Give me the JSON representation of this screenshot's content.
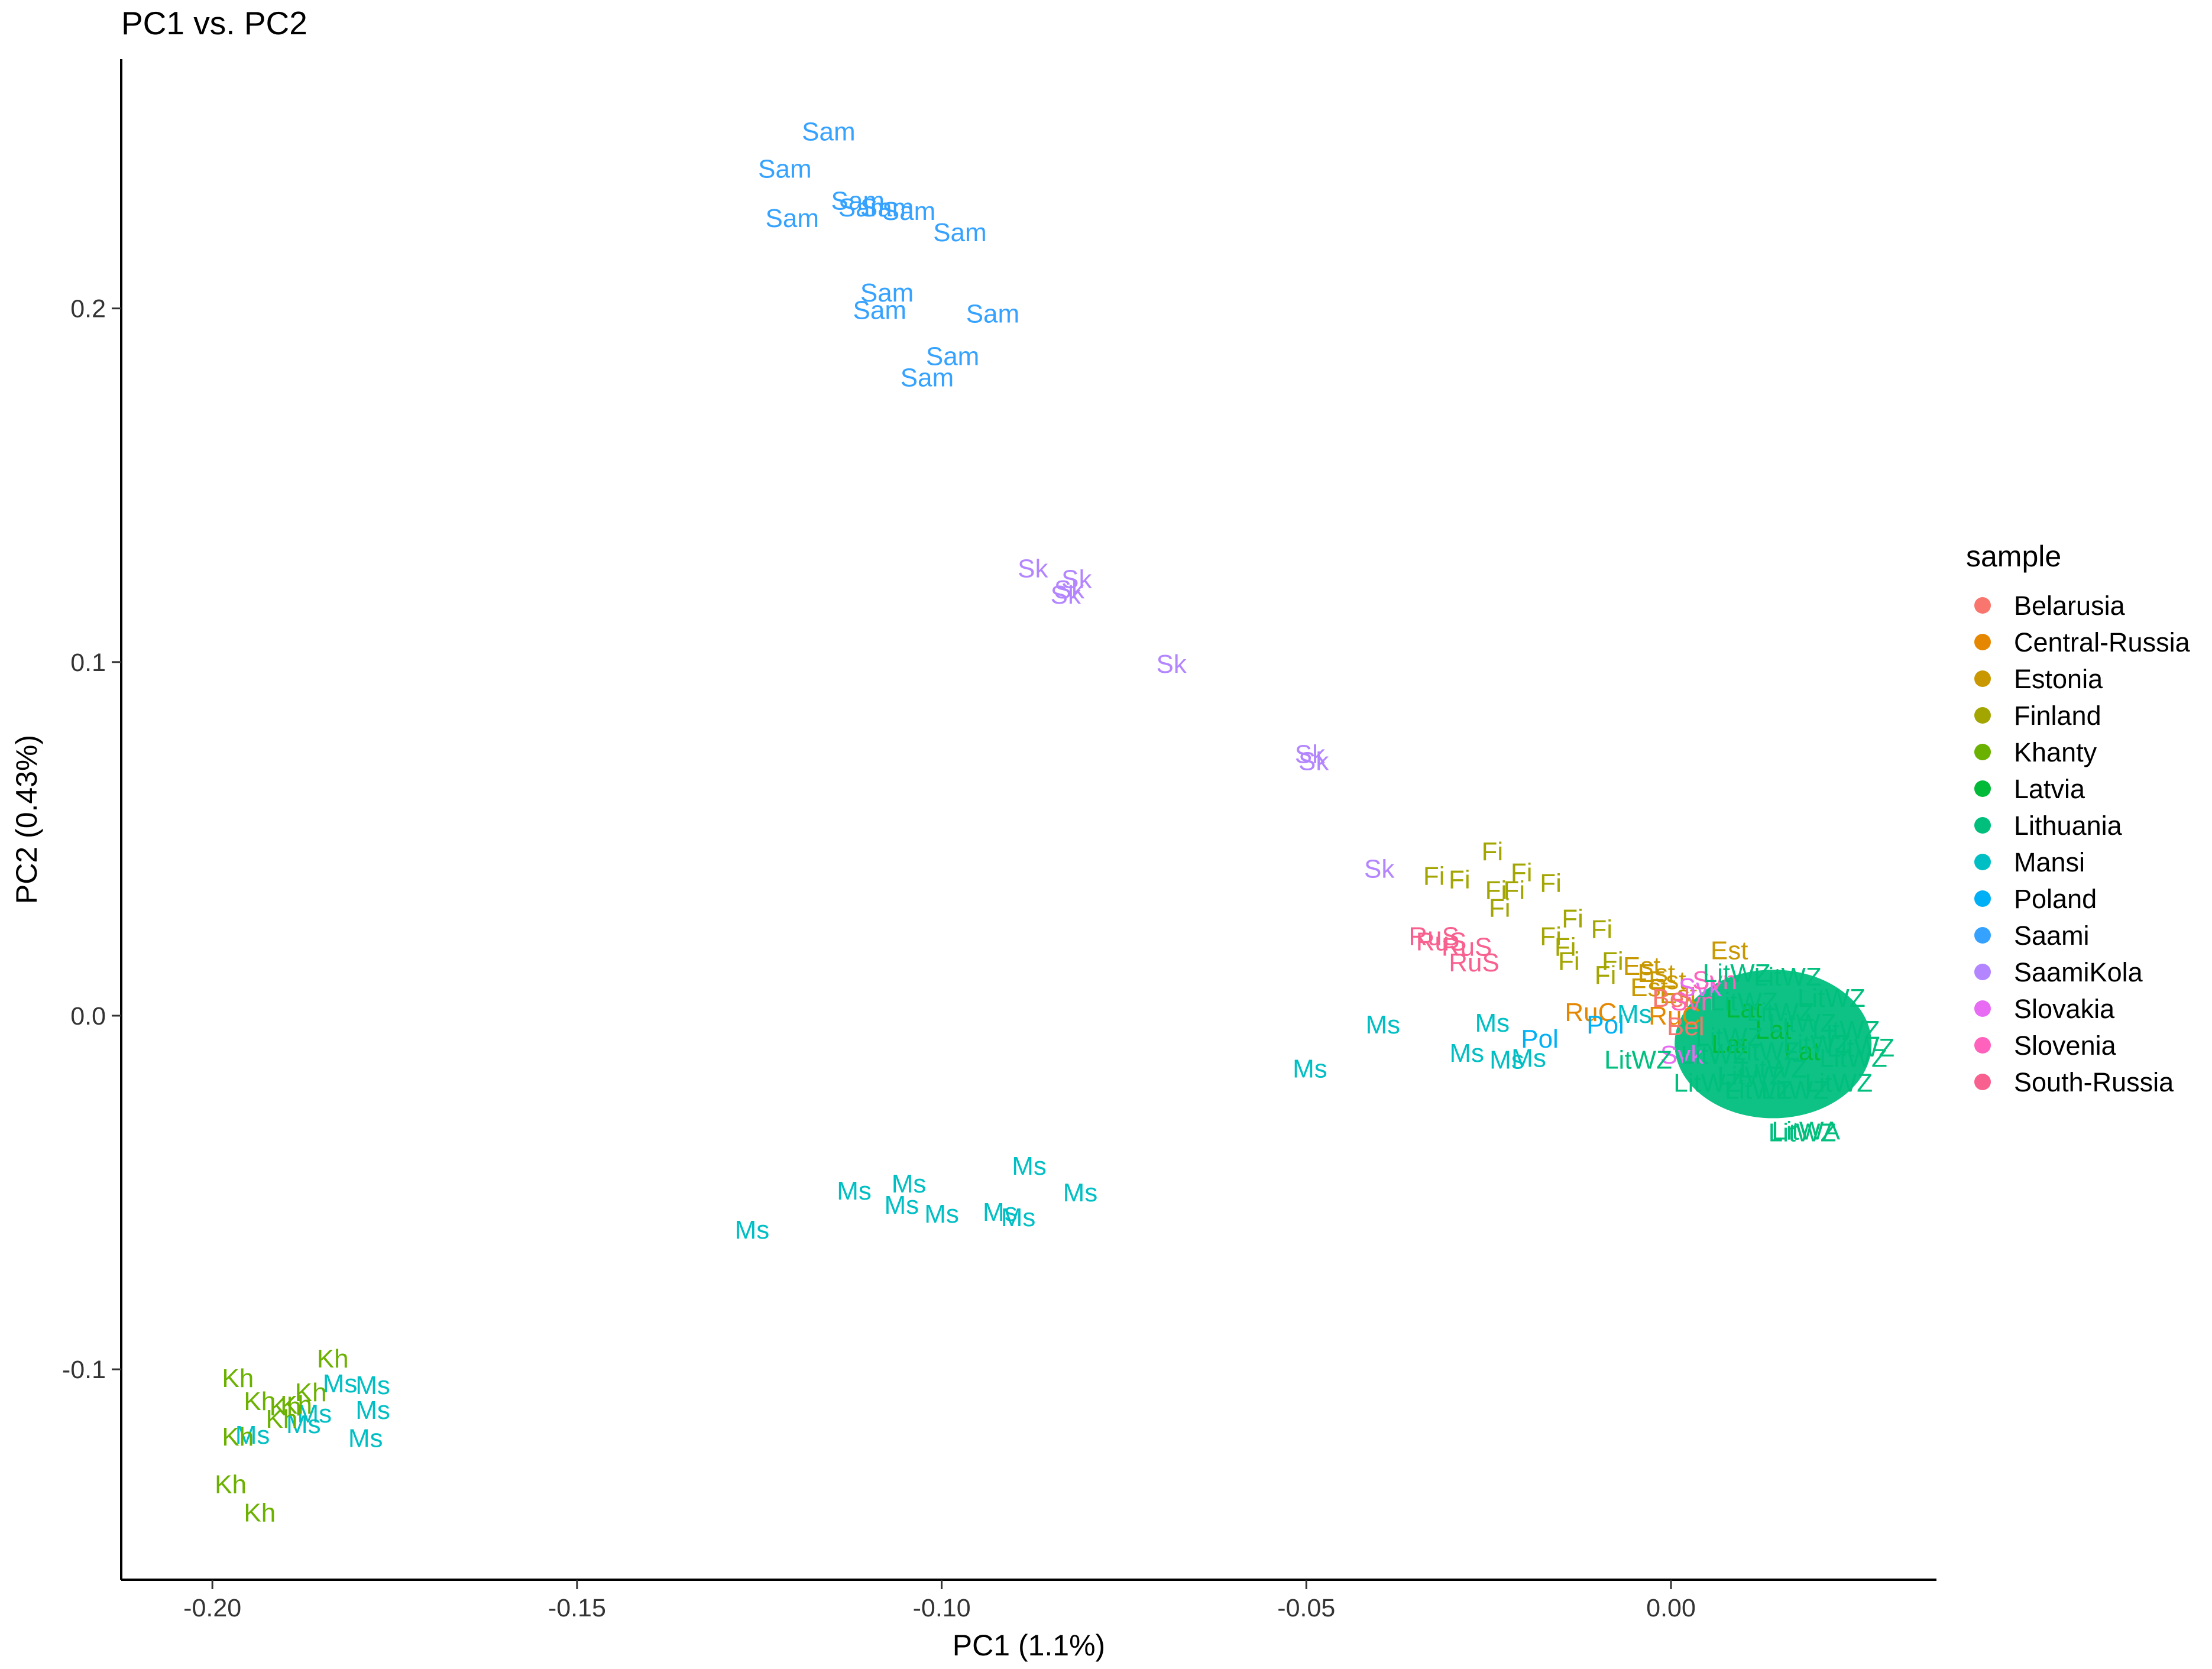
{
  "chart_data": {
    "type": "scatter",
    "title": "PC1 vs. PC2",
    "xlabel": "PC1 (1.1%)",
    "ylabel": "PC2 (0.43%)",
    "xlim": [
      -0.2125,
      0.0364
    ],
    "ylim": [
      -0.1595,
      0.2705
    ],
    "x_ticks": [
      {
        "value": -0.2,
        "label": "-0.20"
      },
      {
        "value": -0.15,
        "label": "-0.15"
      },
      {
        "value": -0.1,
        "label": "-0.10"
      },
      {
        "value": -0.05,
        "label": "-0.05"
      },
      {
        "value": 0.0,
        "label": "0.00"
      }
    ],
    "y_ticks": [
      {
        "value": -0.1,
        "label": "-0.1"
      },
      {
        "value": 0.0,
        "label": "0.0"
      },
      {
        "value": 0.1,
        "label": "0.1"
      },
      {
        "value": 0.2,
        "label": "0.2"
      }
    ],
    "grid": false,
    "legend": {
      "title": "sample",
      "position": "right",
      "entries": [
        {
          "name": "Belarusia",
          "color": "#F8766D"
        },
        {
          "name": "Central-Russia",
          "color": "#E58700"
        },
        {
          "name": "Estonia",
          "color": "#C99800"
        },
        {
          "name": "Finland",
          "color": "#A3A500"
        },
        {
          "name": "Khanty",
          "color": "#6BB100"
        },
        {
          "name": "Latvia",
          "color": "#00BA38"
        },
        {
          "name": "Lithuania",
          "color": "#00BF7D"
        },
        {
          "name": "Mansi",
          "color": "#00BFC4"
        },
        {
          "name": "Poland",
          "color": "#00B0F6"
        },
        {
          "name": "Saami",
          "color": "#35A2FF"
        },
        {
          "name": "SaamiKola",
          "color": "#B385FF"
        },
        {
          "name": "Slovakia",
          "color": "#E76BF3"
        },
        {
          "name": "Slovenia",
          "color": "#FF62BC"
        },
        {
          "name": "South-Russia",
          "color": "#F8608F"
        }
      ]
    },
    "series": [
      {
        "name": "Saami",
        "color": "#35A2FF",
        "points": [
          {
            "x": -0.1155,
            "y": 0.25,
            "label": "Sam"
          },
          {
            "x": -0.1215,
            "y": 0.2395,
            "label": "Sam"
          },
          {
            "x": -0.1205,
            "y": 0.2255,
            "label": "Sam"
          },
          {
            "x": -0.1115,
            "y": 0.2305,
            "label": "Sam"
          },
          {
            "x": -0.1105,
            "y": 0.2285,
            "label": "Sam"
          },
          {
            "x": -0.1075,
            "y": 0.2285,
            "label": "Sam"
          },
          {
            "x": -0.1045,
            "y": 0.2275,
            "label": "Sam"
          },
          {
            "x": -0.0975,
            "y": 0.2215,
            "label": "Sam"
          },
          {
            "x": -0.1075,
            "y": 0.2045,
            "label": "Sam"
          },
          {
            "x": -0.1085,
            "y": 0.1995,
            "label": "Sam"
          },
          {
            "x": -0.093,
            "y": 0.1985,
            "label": "Sam"
          },
          {
            "x": -0.0985,
            "y": 0.1865,
            "label": "Sam"
          },
          {
            "x": -0.102,
            "y": 0.1805,
            "label": "Sam"
          }
        ]
      },
      {
        "name": "SaamiKola",
        "color": "#B385FF",
        "points": [
          {
            "x": -0.0875,
            "y": 0.1265,
            "label": "Sk"
          },
          {
            "x": -0.0815,
            "y": 0.1235,
            "label": "Sk"
          },
          {
            "x": -0.0825,
            "y": 0.1205,
            "label": "Sk"
          },
          {
            "x": -0.083,
            "y": 0.119,
            "label": "Sk"
          },
          {
            "x": -0.0685,
            "y": 0.0995,
            "label": "Sk"
          },
          {
            "x": -0.0495,
            "y": 0.074,
            "label": "Sk"
          },
          {
            "x": -0.049,
            "y": 0.072,
            "label": "Sk"
          },
          {
            "x": -0.04,
            "y": 0.0415,
            "label": "Sk"
          }
        ]
      },
      {
        "name": "Finland",
        "color": "#A3A500",
        "points": [
          {
            "x": -0.029,
            "y": 0.0385,
            "label": "Fi"
          },
          {
            "x": -0.0245,
            "y": 0.0465,
            "label": "Fi"
          },
          {
            "x": -0.0325,
            "y": 0.0395,
            "label": "Fi"
          },
          {
            "x": -0.0205,
            "y": 0.0405,
            "label": "Fi"
          },
          {
            "x": -0.0165,
            "y": 0.0375,
            "label": "Fi"
          },
          {
            "x": -0.024,
            "y": 0.0355,
            "label": "Fi"
          },
          {
            "x": -0.0215,
            "y": 0.0355,
            "label": "Fi"
          },
          {
            "x": -0.0235,
            "y": 0.0305,
            "label": "Fi"
          },
          {
            "x": -0.0135,
            "y": 0.0275,
            "label": "Fi"
          },
          {
            "x": -0.0095,
            "y": 0.0245,
            "label": "Fi"
          },
          {
            "x": -0.0165,
            "y": 0.0225,
            "label": "Fi"
          },
          {
            "x": -0.0145,
            "y": 0.0195,
            "label": "Fi"
          },
          {
            "x": -0.014,
            "y": 0.0155,
            "label": "Fi"
          },
          {
            "x": -0.008,
            "y": 0.0155,
            "label": "Fi"
          },
          {
            "x": -0.009,
            "y": 0.0115,
            "label": "Fi"
          }
        ]
      },
      {
        "name": "South-Russia",
        "color": "#F8608F",
        "points": [
          {
            "x": -0.0325,
            "y": 0.0225,
            "label": "RuS"
          },
          {
            "x": -0.0315,
            "y": 0.021,
            "label": "RuS"
          },
          {
            "x": -0.028,
            "y": 0.0195,
            "label": "RuS"
          },
          {
            "x": -0.027,
            "y": 0.015,
            "label": "RuS"
          }
        ]
      },
      {
        "name": "Estonia",
        "color": "#C99800",
        "points": [
          {
            "x": 0.008,
            "y": 0.0185,
            "label": "Est"
          },
          {
            "x": -0.004,
            "y": 0.014,
            "label": "Est"
          },
          {
            "x": -0.002,
            "y": 0.012,
            "label": "Est"
          },
          {
            "x": -0.0005,
            "y": 0.01,
            "label": "Est"
          },
          {
            "x": -0.003,
            "y": 0.008,
            "label": "Est"
          },
          {
            "x": 0.001,
            "y": 0.006,
            "label": "Est"
          }
        ]
      },
      {
        "name": "Central-Russia",
        "color": "#E58700",
        "points": [
          {
            "x": -0.011,
            "y": 0.001,
            "label": "RuC"
          },
          {
            "x": 0.0005,
            "y": 0.0,
            "label": "RuC"
          }
        ]
      },
      {
        "name": "Poland",
        "color": "#00B0F6",
        "points": [
          {
            "x": -0.018,
            "y": -0.0065,
            "label": "Pol"
          },
          {
            "x": -0.009,
            "y": -0.0025,
            "label": "Pol"
          }
        ]
      },
      {
        "name": "Slovakia",
        "color": "#E76BF3",
        "points": [
          {
            "x": 0.004,
            "y": 0.008,
            "label": "Svk"
          },
          {
            "x": 0.0015,
            "y": -0.011,
            "label": "Svk"
          }
        ]
      },
      {
        "name": "Slovenia",
        "color": "#FF62BC",
        "points": [
          {
            "x": 0.006,
            "y": 0.01,
            "label": "Svn"
          },
          {
            "x": 0.003,
            "y": 0.004,
            "label": "Svn"
          }
        ]
      },
      {
        "name": "Belarusia",
        "color": "#F8766D",
        "points": [
          {
            "x": 0.0,
            "y": 0.005,
            "label": "Bel"
          },
          {
            "x": 0.002,
            "y": -0.003,
            "label": "Bel"
          }
        ]
      },
      {
        "name": "Latvia",
        "color": "#00BA38",
        "points": [
          {
            "x": 0.01,
            "y": 0.002,
            "label": "Lat"
          },
          {
            "x": 0.014,
            "y": -0.004,
            "label": "Lat"
          },
          {
            "x": 0.008,
            "y": -0.008,
            "label": "Lat"
          },
          {
            "x": 0.018,
            "y": -0.01,
            "label": "Lat"
          }
        ]
      },
      {
        "name": "Lithuania",
        "color": "#00BF7D",
        "points": [
          {
            "x": -0.0045,
            "y": -0.0125,
            "label": "LitWZ"
          },
          {
            "x": 0.018,
            "y": -0.033,
            "label": "LitWZ"
          },
          {
            "x": 0.0185,
            "y": -0.0325,
            "label": "LitWA"
          },
          {
            "x": 0.009,
            "y": 0.012,
            "label": "LitWZ"
          },
          {
            "x": 0.005,
            "y": -0.019,
            "label": "LitWZ"
          },
          {
            "x": 0.012,
            "y": -0.021,
            "label": "LitWZ"
          },
          {
            "x": 0.017,
            "y": -0.021,
            "label": "LitWZ"
          },
          {
            "x": 0.023,
            "y": -0.019,
            "label": "LitWZ"
          },
          {
            "x": 0.025,
            "y": -0.012,
            "label": "LitWZ"
          },
          {
            "x": 0.024,
            "y": -0.004,
            "label": "LitWZ"
          },
          {
            "x": 0.022,
            "y": 0.005,
            "label": "LitWZ"
          },
          {
            "x": 0.016,
            "y": 0.011,
            "label": "LitWZ"
          },
          {
            "x": 0.02,
            "y": -0.008,
            "label": "LitWZ"
          },
          {
            "x": 0.013,
            "y": -0.01,
            "label": "LitWZ"
          },
          {
            "x": 0.008,
            "y": -0.006,
            "label": "LitWZ"
          },
          {
            "x": 0.006,
            "y": -0.011,
            "label": "LitWZ"
          },
          {
            "x": 0.014,
            "y": -0.015,
            "label": "LitWZ"
          },
          {
            "x": 0.018,
            "y": -0.002,
            "label": "LitWZ"
          },
          {
            "x": 0.01,
            "y": 0.004,
            "label": "LitWZ"
          },
          {
            "x": 0.011,
            "y": -0.017,
            "label": "LitWZ"
          },
          {
            "x": 0.026,
            "y": -0.009,
            "label": "LitWZ"
          },
          {
            "x": 0.015,
            "y": 0.001,
            "label": "LitWZ"
          }
        ]
      },
      {
        "name": "Mansi",
        "color": "#00BFC4",
        "points": [
          {
            "x": -0.0395,
            "y": -0.0025,
            "label": "Ms"
          },
          {
            "x": -0.0245,
            "y": -0.002,
            "label": "Ms"
          },
          {
            "x": -0.028,
            "y": -0.0105,
            "label": "Ms"
          },
          {
            "x": -0.0225,
            "y": -0.0125,
            "label": "Ms"
          },
          {
            "x": -0.0195,
            "y": -0.012,
            "label": "Ms"
          },
          {
            "x": -0.0495,
            "y": -0.015,
            "label": "Ms"
          },
          {
            "x": -0.005,
            "y": 0.0005,
            "label": "Ms"
          },
          {
            "x": -0.088,
            "y": -0.0425,
            "label": "Ms"
          },
          {
            "x": -0.1045,
            "y": -0.0475,
            "label": "Ms"
          },
          {
            "x": -0.112,
            "y": -0.0495,
            "label": "Ms"
          },
          {
            "x": -0.081,
            "y": -0.05,
            "label": "Ms"
          },
          {
            "x": -0.1055,
            "y": -0.0535,
            "label": "Ms"
          },
          {
            "x": -0.1,
            "y": -0.056,
            "label": "Ms"
          },
          {
            "x": -0.092,
            "y": -0.0555,
            "label": "Ms"
          },
          {
            "x": -0.0895,
            "y": -0.057,
            "label": "Ms"
          },
          {
            "x": -0.126,
            "y": -0.0605,
            "label": "Ms"
          },
          {
            "x": -0.1825,
            "y": -0.104,
            "label": "Ms"
          },
          {
            "x": -0.178,
            "y": -0.1045,
            "label": "Ms"
          },
          {
            "x": -0.178,
            "y": -0.1115,
            "label": "Ms"
          },
          {
            "x": -0.186,
            "y": -0.1125,
            "label": "Ms"
          },
          {
            "x": -0.1875,
            "y": -0.1155,
            "label": "Ms"
          },
          {
            "x": -0.179,
            "y": -0.1195,
            "label": "Ms"
          },
          {
            "x": -0.1945,
            "y": -0.1185,
            "label": "Ms"
          }
        ]
      },
      {
        "name": "Khanty",
        "color": "#6BB100",
        "points": [
          {
            "x": -0.1835,
            "y": -0.097,
            "label": "Kh"
          },
          {
            "x": -0.1965,
            "y": -0.1025,
            "label": "Kh"
          },
          {
            "x": -0.1865,
            "y": -0.1065,
            "label": "Kh"
          },
          {
            "x": -0.1935,
            "y": -0.109,
            "label": "Kh"
          },
          {
            "x": -0.19,
            "y": -0.1105,
            "label": "Kh"
          },
          {
            "x": -0.1885,
            "y": -0.11,
            "label": "Kh"
          },
          {
            "x": -0.1905,
            "y": -0.114,
            "label": "Kh"
          },
          {
            "x": -0.1965,
            "y": -0.119,
            "label": "Kh"
          },
          {
            "x": -0.1975,
            "y": -0.1325,
            "label": "Kh"
          },
          {
            "x": -0.1935,
            "y": -0.1405,
            "label": "Kh"
          }
        ]
      }
    ],
    "dense_cluster": {
      "name": "Lithuania",
      "color": "#00BF7D",
      "center_x": 0.014,
      "center_y": -0.008,
      "radius_x": 0.0135,
      "radius_y": 0.021
    }
  }
}
